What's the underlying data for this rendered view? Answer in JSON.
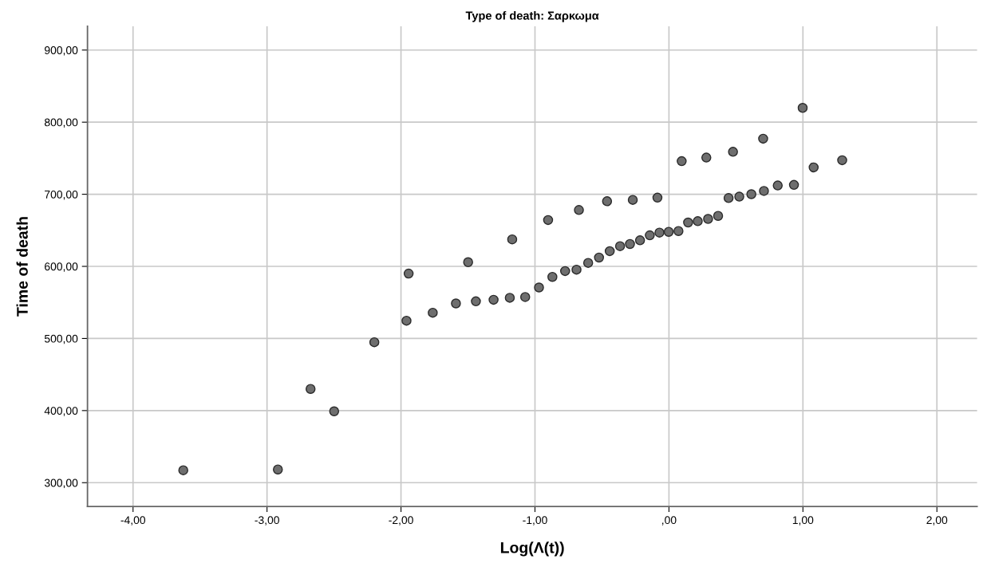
{
  "chart_data": {
    "type": "scatter",
    "title": "Type of death: Σαρκωμα",
    "xlabel": "Log(Λ(t))",
    "ylabel": "Time of death",
    "x": [
      -3.625,
      -2.919,
      -2.675,
      -2.499,
      -2.199,
      -1.959,
      -1.943,
      -1.763,
      -1.59,
      -1.499,
      -1.441,
      -1.309,
      -1.188,
      -1.17,
      -1.073,
      -0.97,
      -0.902,
      -0.87,
      -0.775,
      -0.69,
      -0.672,
      -0.603,
      -0.522,
      -0.462,
      -0.442,
      -0.365,
      -0.291,
      -0.27,
      -0.216,
      -0.143,
      -0.086,
      -0.071,
      -0.002,
      0.071,
      0.095,
      0.143,
      0.215,
      0.279,
      0.292,
      0.367,
      0.445,
      0.478,
      0.525,
      0.615,
      0.703,
      0.709,
      0.812,
      0.933,
      0.998,
      1.08,
      1.293
    ],
    "series": [
      {
        "color": "#6e6e6e",
        "values": [
          317.2,
          318.3,
          430,
          399,
          494.8,
          524.6,
          590,
          535.7,
          548.6,
          605.8,
          551.5,
          553.7,
          556.4,
          637.4,
          557.5,
          570.7,
          664.3,
          585.4,
          593.5,
          595.4,
          678.2,
          604.8,
          612.2,
          690.3,
          621.1,
          628,
          631,
          692.2,
          636.1,
          643.1,
          695.3,
          646.8,
          647.9,
          649,
          745.9,
          660.8,
          662.7,
          750.9,
          665.8,
          670,
          694.8,
          758.9,
          696.7,
          700.1,
          777.1,
          704.6,
          712.2,
          713,
          819.8,
          737.3,
          747.2
        ]
      }
    ],
    "marker": "circle",
    "grid": true,
    "xlim": [
      -4.34,
      2.3
    ],
    "ylim": [
      267,
      933
    ],
    "xticks": [
      {
        "value": -4,
        "label": "-4,00"
      },
      {
        "value": -3,
        "label": "-3,00"
      },
      {
        "value": -2,
        "label": "-2,00"
      },
      {
        "value": -1,
        "label": "-1,00"
      },
      {
        "value": 0,
        "label": ",00"
      },
      {
        "value": 1,
        "label": "1,00"
      },
      {
        "value": 2,
        "label": "2,00"
      }
    ],
    "yticks": [
      {
        "value": 300,
        "label": "300,00"
      },
      {
        "value": 400,
        "label": "400,00"
      },
      {
        "value": 500,
        "label": "500,00"
      },
      {
        "value": 600,
        "label": "600,00"
      },
      {
        "value": 700,
        "label": "700,00"
      },
      {
        "value": 800,
        "label": "800,00"
      },
      {
        "value": 900,
        "label": "900,00"
      }
    ]
  }
}
